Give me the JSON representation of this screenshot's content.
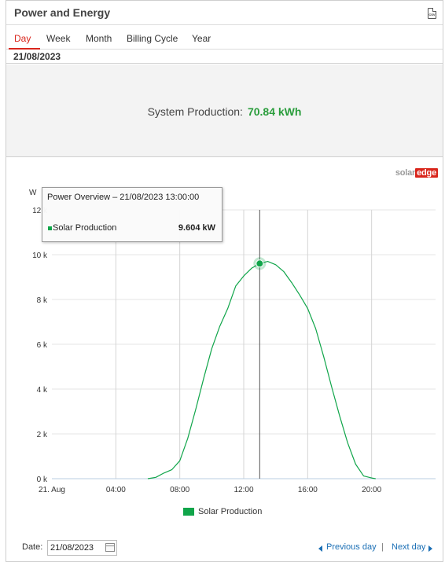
{
  "header": {
    "title": "Power and Energy",
    "export_icon": "csv-file-icon",
    "export_icon_text": "CSV"
  },
  "tabs": [
    {
      "label": "Day",
      "active": true
    },
    {
      "label": "Week",
      "active": false
    },
    {
      "label": "Month",
      "active": false
    },
    {
      "label": "Billing Cycle",
      "active": false
    },
    {
      "label": "Year",
      "active": false
    }
  ],
  "selected_date": "21/08/2023",
  "summary": {
    "label": "System Production:",
    "value": "70.84 kWh"
  },
  "brand": {
    "solar": "solar",
    "edge": "edge"
  },
  "colors": {
    "accent": "#d9261c",
    "series": "#10a54a",
    "link": "#1b6fb5",
    "value_green": "#2a9d3c"
  },
  "tooltip": {
    "title": "Power Overview – 21/08/2023 13:00:00",
    "series": "Solar Production",
    "value": "9.604 kW"
  },
  "chart_data": {
    "type": "area",
    "title": "",
    "xlabel": "",
    "ylabel": "W",
    "ylim": [
      0,
      12000
    ],
    "xlim": [
      0,
      24
    ],
    "y_ticks": [
      {
        "value": 0,
        "label": "0 k"
      },
      {
        "value": 2000,
        "label": "2 k"
      },
      {
        "value": 4000,
        "label": "4 k"
      },
      {
        "value": 6000,
        "label": "6 k"
      },
      {
        "value": 8000,
        "label": "8 k"
      },
      {
        "value": 10000,
        "label": "10 k"
      },
      {
        "value": 12000,
        "label": "12 k"
      }
    ],
    "x_ticks": [
      {
        "value": 0,
        "label": "21. Aug"
      },
      {
        "value": 4,
        "label": "04:00"
      },
      {
        "value": 8,
        "label": "08:00"
      },
      {
        "value": 12,
        "label": "12:00"
      },
      {
        "value": 16,
        "label": "16:00"
      },
      {
        "value": 20,
        "label": "20:00"
      }
    ],
    "grid": true,
    "legend_position": "bottom-center",
    "crosshair_x": 13,
    "highlight": {
      "x": 13,
      "y": 9604
    },
    "series": [
      {
        "name": "Solar Production",
        "x": [
          6.0,
          6.5,
          7.0,
          7.5,
          8.0,
          8.5,
          9.0,
          9.5,
          10.0,
          10.5,
          11.0,
          11.5,
          12.0,
          12.5,
          13.0,
          13.5,
          14.0,
          14.5,
          15.0,
          15.5,
          16.0,
          16.5,
          17.0,
          17.5,
          18.0,
          18.5,
          19.0,
          19.5,
          20.0,
          20.25
        ],
        "y": [
          0,
          60,
          250,
          400,
          800,
          1800,
          3100,
          4500,
          5800,
          6800,
          7600,
          8600,
          9050,
          9400,
          9604,
          9700,
          9550,
          9250,
          8750,
          8200,
          7600,
          6700,
          5450,
          4100,
          2800,
          1600,
          650,
          120,
          30,
          0
        ]
      }
    ]
  },
  "footer": {
    "date_label": "Date:",
    "date_value": "21/08/2023",
    "prev_label": "Previous day",
    "separator": "|",
    "next_label": "Next day"
  }
}
